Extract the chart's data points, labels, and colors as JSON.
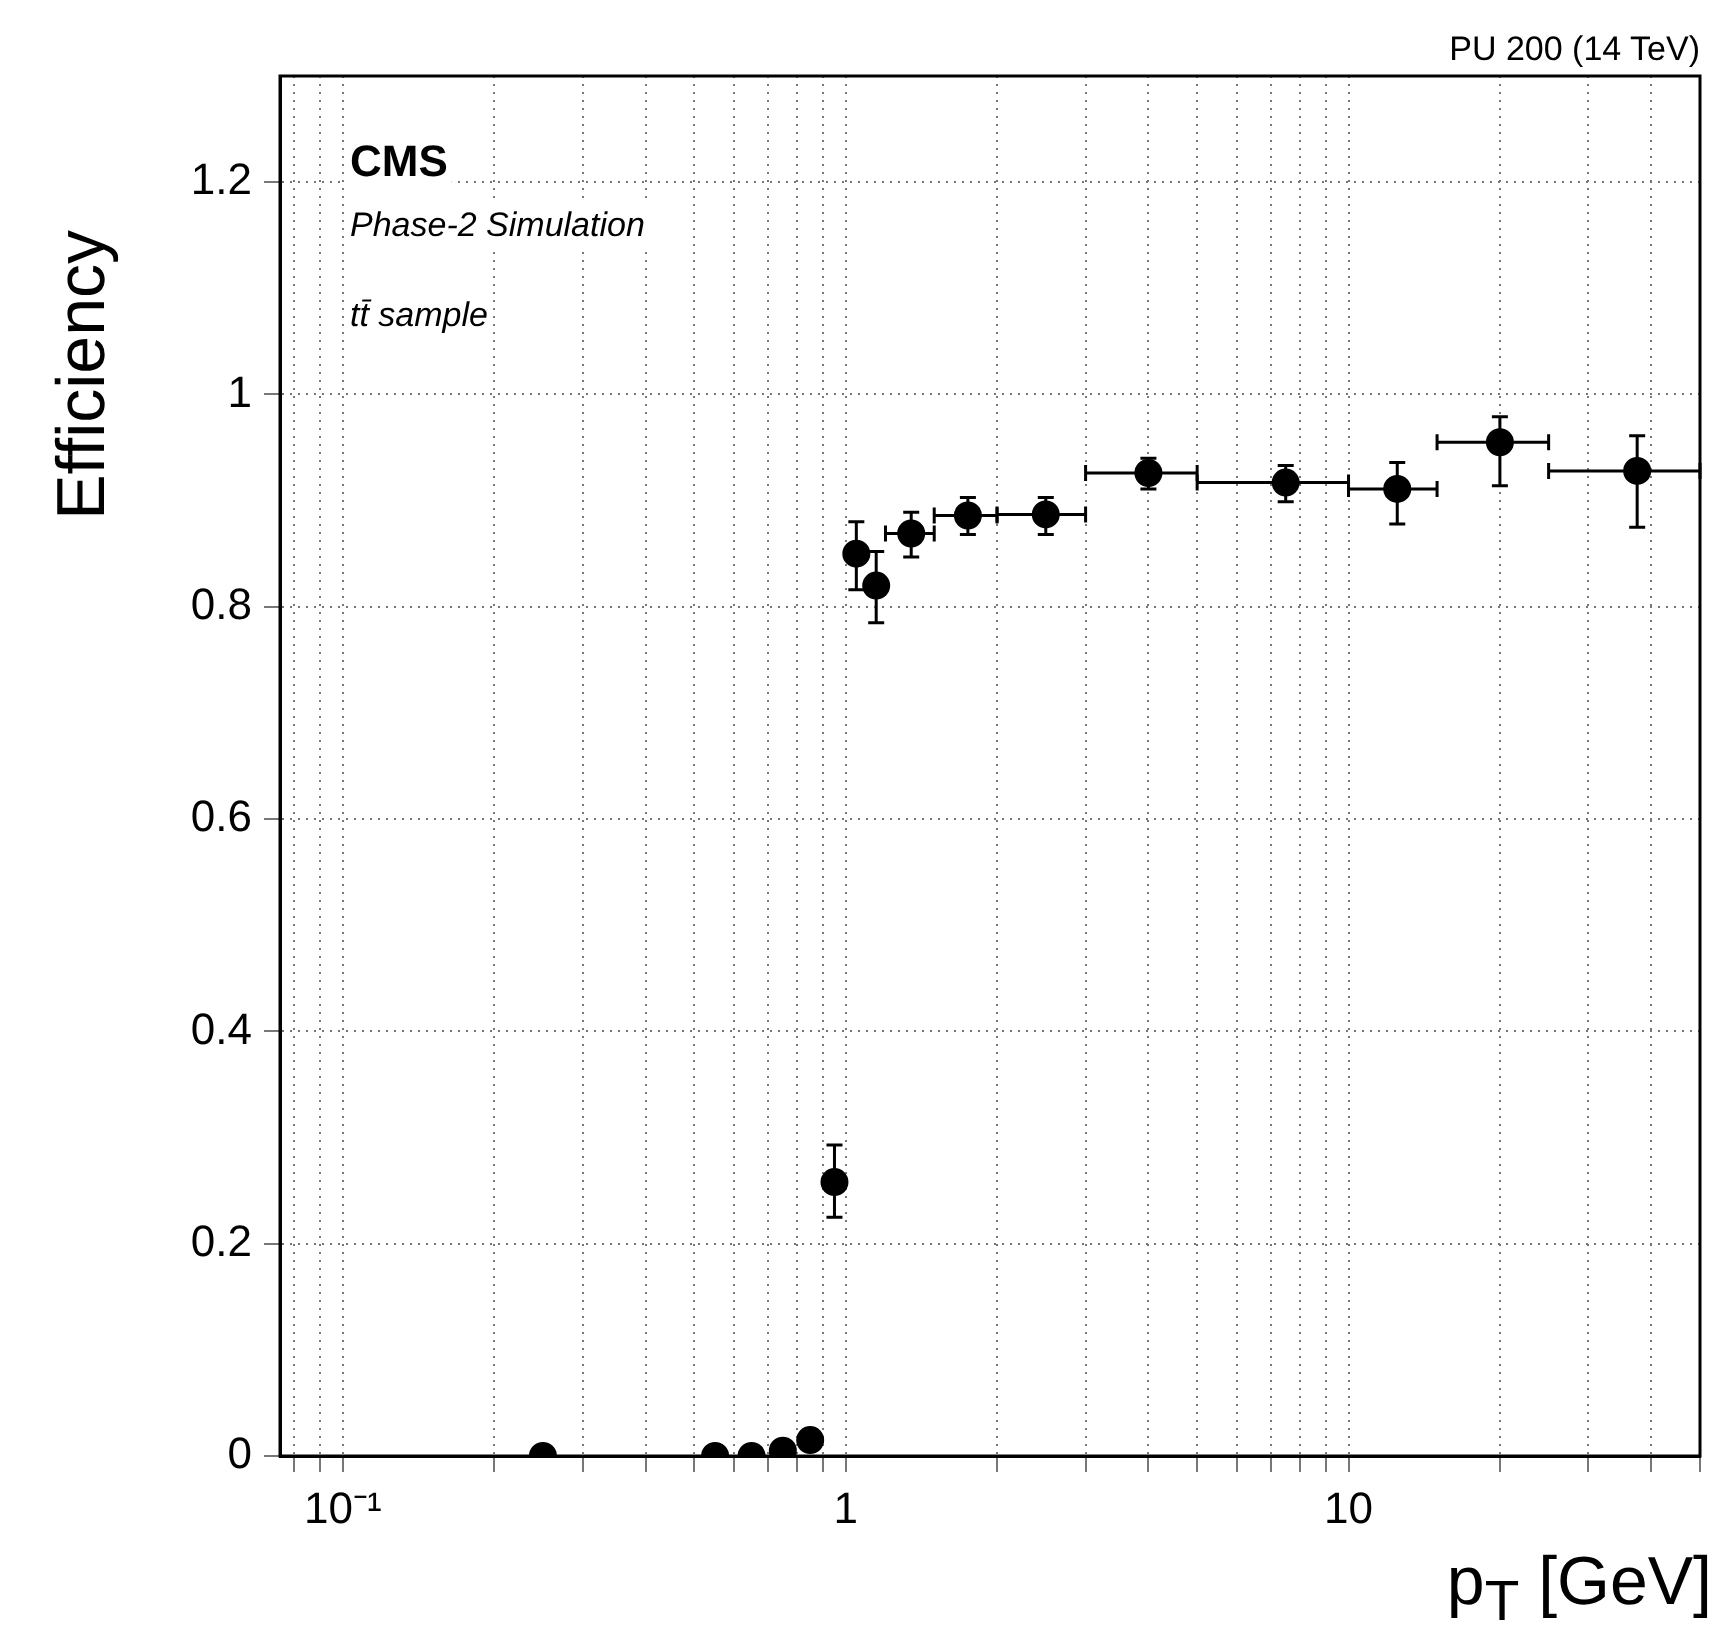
{
  "chart_data": {
    "type": "scatter",
    "xlabel": "p$_{T}$ [GeV]",
    "ylabel": "Efficiency",
    "annotations": [
      "PU 200 (14 TeV)",
      "CMS",
      "Phase-2 Simulation",
      "tt̄ sample"
    ],
    "log": "x",
    "xlim": [
      0.075,
      50
    ],
    "ylim": [
      0,
      1.3
    ],
    "xticks": [
      {
        "value": 0.08,
        "label": null
      },
      {
        "value": 0.09,
        "label": null
      },
      {
        "value": 0.1,
        "label": "10⁻¹"
      },
      {
        "value": 0.2,
        "label": null
      },
      {
        "value": 0.3,
        "label": null
      },
      {
        "value": 0.4,
        "label": null
      },
      {
        "value": 0.5,
        "label": null
      },
      {
        "value": 0.6,
        "label": null
      },
      {
        "value": 0.7,
        "label": null
      },
      {
        "value": 0.8,
        "label": null
      },
      {
        "value": 0.9,
        "label": null
      },
      1,
      {
        "value": 2,
        "label": null
      },
      {
        "value": 3,
        "label": null
      },
      {
        "value": 4,
        "label": null
      },
      {
        "value": 5,
        "label": null
      },
      {
        "value": 6,
        "label": null
      },
      {
        "value": 7,
        "label": null
      },
      {
        "value": 8,
        "label": null
      },
      {
        "value": 9,
        "label": null
      },
      10,
      {
        "value": 20,
        "label": null
      },
      {
        "value": 30,
        "label": null
      },
      {
        "value": 40,
        "label": null
      },
      {
        "value": 50,
        "label": null
      }
    ],
    "yticks": [
      0,
      0.2,
      0.4,
      0.6,
      0.8,
      1,
      1.2
    ],
    "grid": true,
    "marker": "circle",
    "series": [
      {
        "color": "#000000",
        "x": [
          0.25,
          0.55,
          0.65,
          0.75,
          0.85,
          0.95,
          1.05,
          1.15,
          1.35,
          1.75,
          2.5,
          4,
          7.5,
          12.5,
          20,
          37.5
        ],
        "values": [
          0,
          0,
          0,
          0.005,
          0.015,
          0.258,
          0.85,
          0.82,
          0.869,
          0.886,
          0.887,
          0.926,
          0.917,
          0.911,
          0.955,
          0.928
        ],
        "errors": [
          null,
          null,
          null,
          null,
          null,
          [
            0.225,
            0.293
          ],
          [
            0.816,
            0.88
          ],
          [
            0.785,
            0.852
          ],
          [
            0.847,
            0.889
          ],
          [
            0.868,
            0.903
          ],
          [
            0.868,
            0.903
          ],
          [
            0.911,
            0.94
          ],
          [
            0.899,
            0.933
          ],
          [
            0.878,
            0.936
          ],
          [
            0.914,
            0.979
          ],
          [
            0.875,
            0.961
          ]
        ],
        "xerrors": [
          null,
          null,
          null,
          null,
          null,
          null,
          null,
          null,
          [
            1.2,
            1.5
          ],
          [
            1.5,
            2
          ],
          [
            2,
            3
          ],
          [
            3,
            5
          ],
          [
            5,
            10
          ],
          [
            10,
            15
          ],
          [
            15,
            25
          ],
          [
            25,
            50
          ]
        ]
      }
    ]
  }
}
